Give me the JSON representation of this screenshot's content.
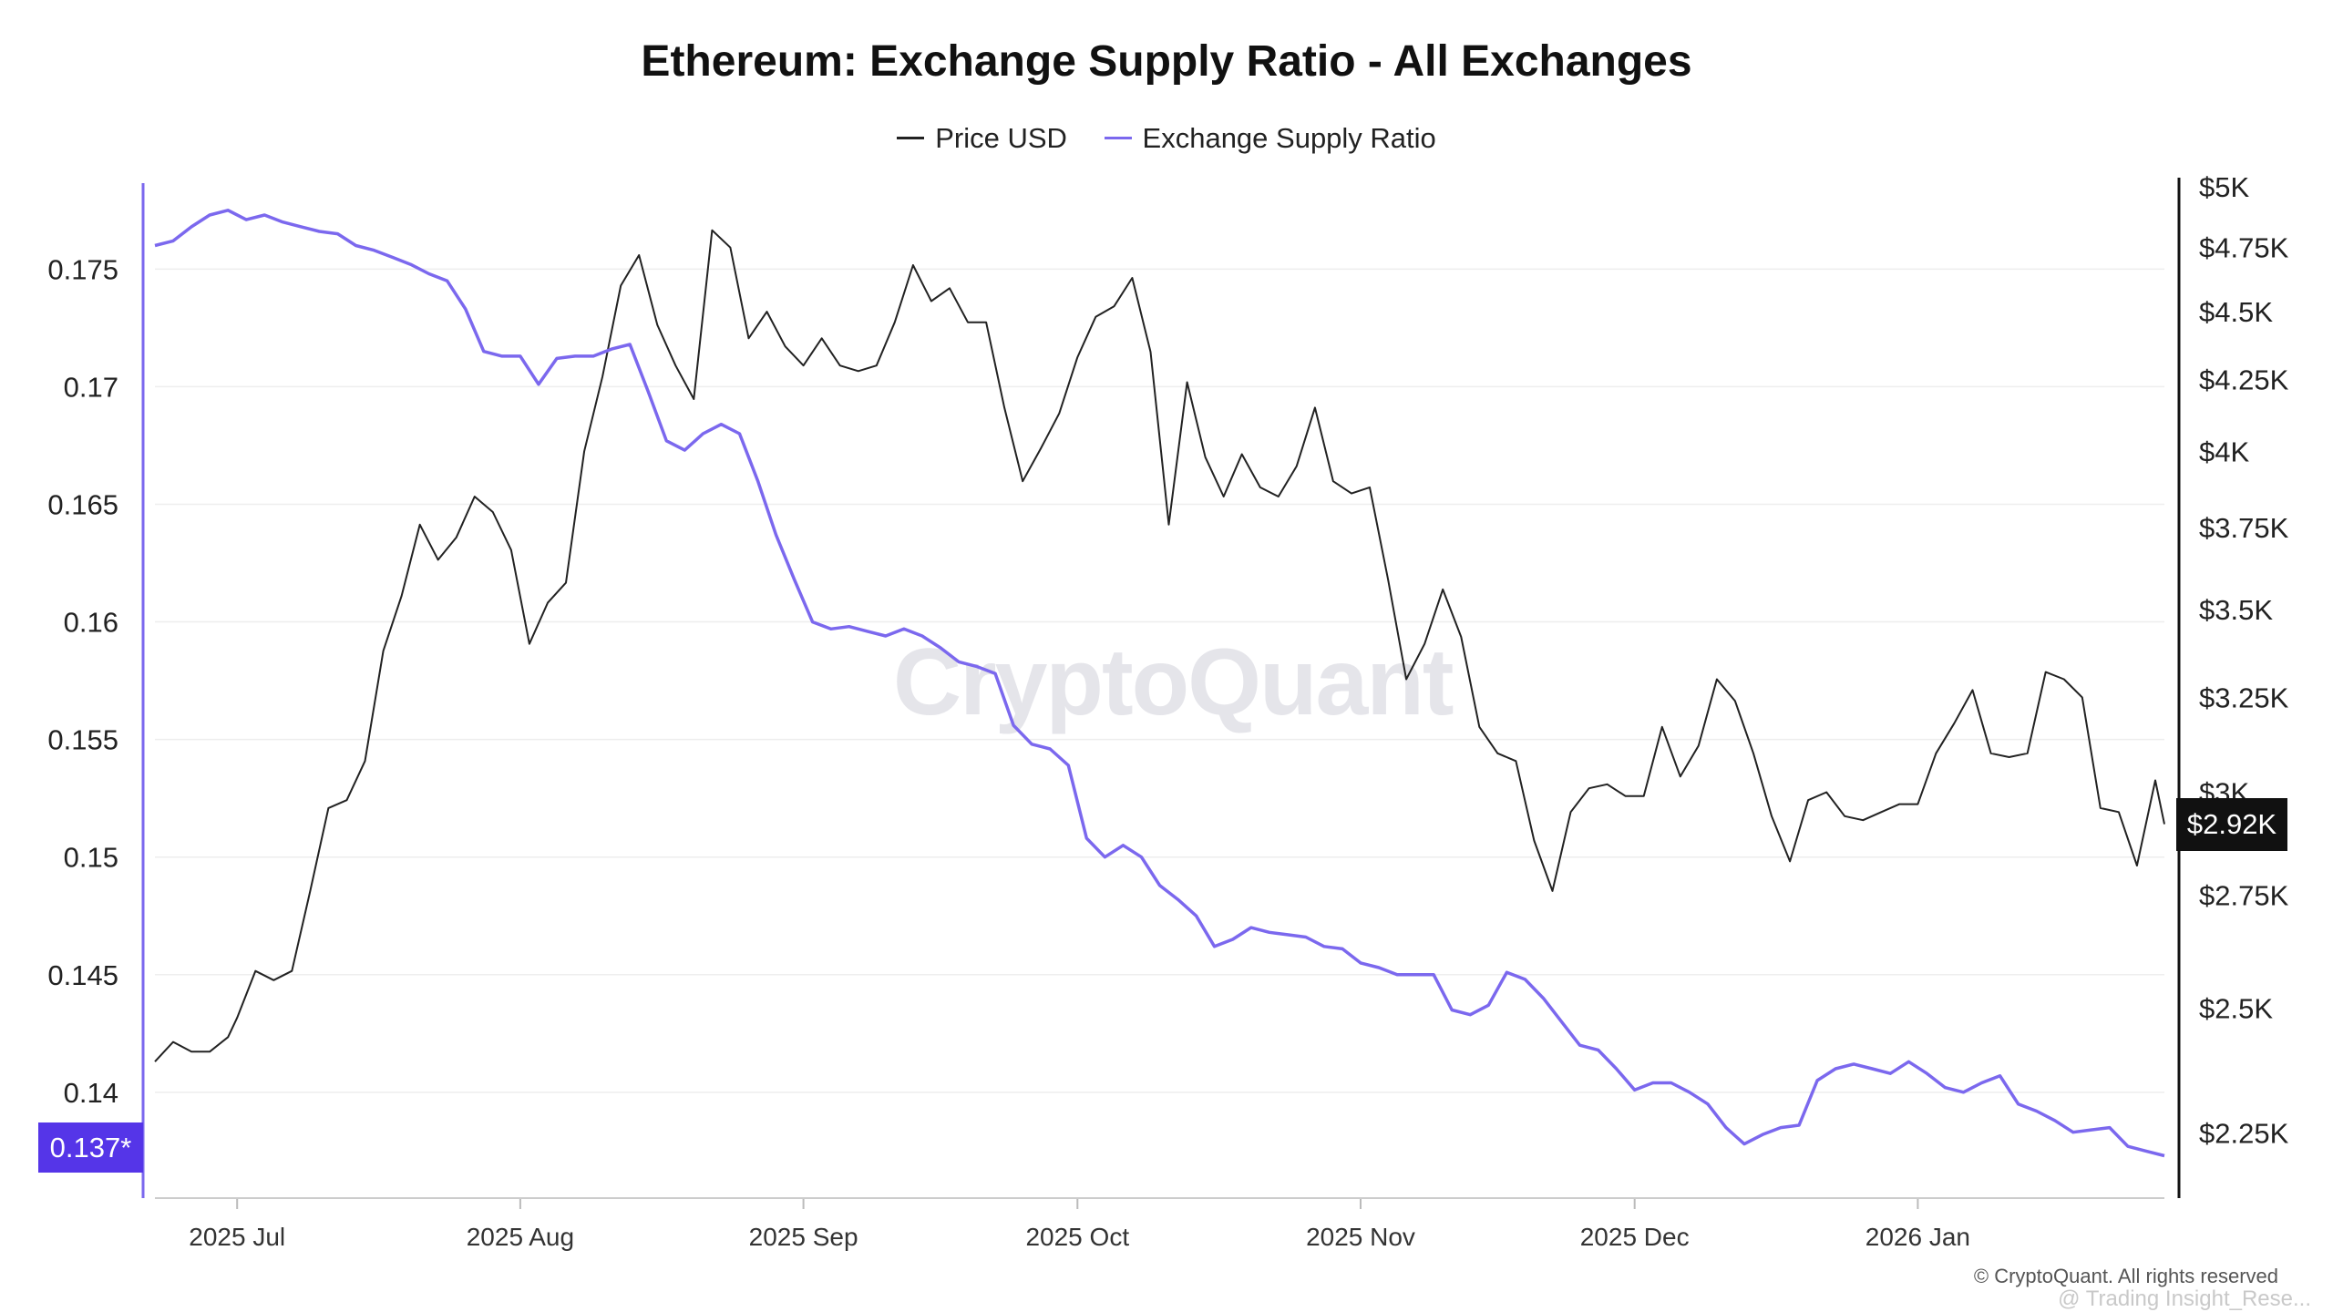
{
  "title": "Ethereum: Exchange Supply Ratio - All Exchanges",
  "legend": [
    {
      "label": "Price USD",
      "color": "#222222"
    },
    {
      "label": "Exchange Supply Ratio",
      "color": "#7b68ee"
    }
  ],
  "watermark": "CryptoQuant",
  "copyright": "© CryptoQuant. All rights reserved",
  "sub_watermark": "@ Trading Insight_Rese...",
  "current": {
    "ratio_label": "0.137*",
    "price_label": "$2.92K"
  },
  "chart_data": {
    "type": "line",
    "title": "Ethereum: Exchange Supply Ratio - All Exchanges",
    "x_ticks": [
      "2025 Jul",
      "2025 Aug",
      "2025 Sep",
      "2025 Oct",
      "2025 Nov",
      "2025 Dec",
      "2026 Jan"
    ],
    "x_range": [
      "2025-06-22",
      "2026-01-28"
    ],
    "y_left": {
      "ticks": [
        "0.14",
        "0.145",
        "0.15",
        "0.155",
        "0.16",
        "0.165",
        "0.17",
        "0.175"
      ],
      "range": [
        0.1355,
        0.1785
      ]
    },
    "y_right": {
      "ticks": [
        "$2.25K",
        "$2.5K",
        "$2.75K",
        "$3K",
        "$3.25K",
        "$3.5K",
        "$3.75K",
        "$4K",
        "$4.25K",
        "$4.5K",
        "$4.75K",
        "$5K"
      ],
      "range": [
        2130,
        5000
      ],
      "scale": "log"
    },
    "grid": true,
    "legend_position": "top-center",
    "series": [
      {
        "name": "Price USD",
        "axis": "right",
        "color": "#222222",
        "points": [
          [
            "2025-06-22",
            2390
          ],
          [
            "2025-06-24",
            2430
          ],
          [
            "2025-06-26",
            2410
          ],
          [
            "2025-06-28",
            2410
          ],
          [
            "2025-06-30",
            2440
          ],
          [
            "2025-07-01",
            2480
          ],
          [
            "2025-07-03",
            2580
          ],
          [
            "2025-07-05",
            2560
          ],
          [
            "2025-07-07",
            2580
          ],
          [
            "2025-07-09",
            2760
          ],
          [
            "2025-07-11",
            2960
          ],
          [
            "2025-07-13",
            2980
          ],
          [
            "2025-07-15",
            3080
          ],
          [
            "2025-07-17",
            3380
          ],
          [
            "2025-07-19",
            3540
          ],
          [
            "2025-07-21",
            3760
          ],
          [
            "2025-07-23",
            3650
          ],
          [
            "2025-07-25",
            3720
          ],
          [
            "2025-07-27",
            3850
          ],
          [
            "2025-07-29",
            3800
          ],
          [
            "2025-07-31",
            3680
          ],
          [
            "2025-08-02",
            3400
          ],
          [
            "2025-08-04",
            3520
          ],
          [
            "2025-08-06",
            3580
          ],
          [
            "2025-08-08",
            4000
          ],
          [
            "2025-08-10",
            4260
          ],
          [
            "2025-08-12",
            4600
          ],
          [
            "2025-08-14",
            4720
          ],
          [
            "2025-08-16",
            4450
          ],
          [
            "2025-08-18",
            4300
          ],
          [
            "2025-08-20",
            4180
          ],
          [
            "2025-08-22",
            4820
          ],
          [
            "2025-08-24",
            4750
          ],
          [
            "2025-08-26",
            4400
          ],
          [
            "2025-08-28",
            4500
          ],
          [
            "2025-08-30",
            4370
          ],
          [
            "2025-09-01",
            4300
          ],
          [
            "2025-09-03",
            4400
          ],
          [
            "2025-09-05",
            4300
          ],
          [
            "2025-09-07",
            4280
          ],
          [
            "2025-09-09",
            4300
          ],
          [
            "2025-09-11",
            4460
          ],
          [
            "2025-09-13",
            4680
          ],
          [
            "2025-09-15",
            4540
          ],
          [
            "2025-09-17",
            4590
          ],
          [
            "2025-09-19",
            4460
          ],
          [
            "2025-09-21",
            4460
          ],
          [
            "2025-09-23",
            4150
          ],
          [
            "2025-09-25",
            3900
          ],
          [
            "2025-09-27",
            4010
          ],
          [
            "2025-09-29",
            4130
          ],
          [
            "2025-10-01",
            4330
          ],
          [
            "2025-10-03",
            4480
          ],
          [
            "2025-10-05",
            4520
          ],
          [
            "2025-10-07",
            4630
          ],
          [
            "2025-10-09",
            4350
          ],
          [
            "2025-10-11",
            3760
          ],
          [
            "2025-10-13",
            4240
          ],
          [
            "2025-10-15",
            3980
          ],
          [
            "2025-10-17",
            3850
          ],
          [
            "2025-10-19",
            3990
          ],
          [
            "2025-10-21",
            3880
          ],
          [
            "2025-10-23",
            3850
          ],
          [
            "2025-10-25",
            3950
          ],
          [
            "2025-10-27",
            4150
          ],
          [
            "2025-10-29",
            3900
          ],
          [
            "2025-10-31",
            3860
          ],
          [
            "2025-11-02",
            3880
          ],
          [
            "2025-11-04",
            3590
          ],
          [
            "2025-11-06",
            3300
          ],
          [
            "2025-11-08",
            3400
          ],
          [
            "2025-11-10",
            3560
          ],
          [
            "2025-11-12",
            3420
          ],
          [
            "2025-11-14",
            3170
          ],
          [
            "2025-11-16",
            3100
          ],
          [
            "2025-11-18",
            3080
          ],
          [
            "2025-11-20",
            2880
          ],
          [
            "2025-11-22",
            2760
          ],
          [
            "2025-11-24",
            2950
          ],
          [
            "2025-11-26",
            3010
          ],
          [
            "2025-11-28",
            3020
          ],
          [
            "2025-11-30",
            2990
          ],
          [
            "2025-12-02",
            2990
          ],
          [
            "2025-12-04",
            3170
          ],
          [
            "2025-12-06",
            3040
          ],
          [
            "2025-12-08",
            3120
          ],
          [
            "2025-12-10",
            3300
          ],
          [
            "2025-12-12",
            3240
          ],
          [
            "2025-12-14",
            3100
          ],
          [
            "2025-12-16",
            2940
          ],
          [
            "2025-12-18",
            2830
          ],
          [
            "2025-12-20",
            2980
          ],
          [
            "2025-12-22",
            3000
          ],
          [
            "2025-12-24",
            2940
          ],
          [
            "2025-12-26",
            2930
          ],
          [
            "2025-12-28",
            2950
          ],
          [
            "2025-12-30",
            2970
          ],
          [
            "2026-01-01",
            2970
          ],
          [
            "2026-01-03",
            3100
          ],
          [
            "2026-01-05",
            3180
          ],
          [
            "2026-01-07",
            3270
          ],
          [
            "2026-01-09",
            3100
          ],
          [
            "2026-01-11",
            3090
          ],
          [
            "2026-01-13",
            3100
          ],
          [
            "2026-01-15",
            3320
          ],
          [
            "2026-01-17",
            3300
          ],
          [
            "2026-01-19",
            3250
          ],
          [
            "2026-01-21",
            2960
          ],
          [
            "2026-01-23",
            2950
          ],
          [
            "2026-01-25",
            2820
          ],
          [
            "2026-01-27",
            3030
          ],
          [
            "2026-01-28",
            2920
          ]
        ]
      },
      {
        "name": "Exchange Supply Ratio",
        "axis": "left",
        "color": "#7b68ee",
        "points": [
          [
            "2025-06-22",
            0.176
          ],
          [
            "2025-06-24",
            0.1762
          ],
          [
            "2025-06-26",
            0.1768
          ],
          [
            "2025-06-28",
            0.1773
          ],
          [
            "2025-06-30",
            0.1775
          ],
          [
            "2025-07-02",
            0.1771
          ],
          [
            "2025-07-04",
            0.1773
          ],
          [
            "2025-07-06",
            0.177
          ],
          [
            "2025-07-08",
            0.1768
          ],
          [
            "2025-07-10",
            0.1766
          ],
          [
            "2025-07-12",
            0.1765
          ],
          [
            "2025-07-14",
            0.176
          ],
          [
            "2025-07-16",
            0.1758
          ],
          [
            "2025-07-18",
            0.1755
          ],
          [
            "2025-07-20",
            0.1752
          ],
          [
            "2025-07-22",
            0.1748
          ],
          [
            "2025-07-24",
            0.1745
          ],
          [
            "2025-07-26",
            0.1733
          ],
          [
            "2025-07-28",
            0.1715
          ],
          [
            "2025-07-30",
            0.1713
          ],
          [
            "2025-08-01",
            0.1713
          ],
          [
            "2025-08-03",
            0.1701
          ],
          [
            "2025-08-05",
            0.1712
          ],
          [
            "2025-08-07",
            0.1713
          ],
          [
            "2025-08-09",
            0.1713
          ],
          [
            "2025-08-11",
            0.1716
          ],
          [
            "2025-08-13",
            0.1718
          ],
          [
            "2025-08-15",
            0.1698
          ],
          [
            "2025-08-17",
            0.1677
          ],
          [
            "2025-08-19",
            0.1673
          ],
          [
            "2025-08-21",
            0.168
          ],
          [
            "2025-08-23",
            0.1684
          ],
          [
            "2025-08-25",
            0.168
          ],
          [
            "2025-08-27",
            0.166
          ],
          [
            "2025-08-29",
            0.1637
          ],
          [
            "2025-08-31",
            0.1618
          ],
          [
            "2025-09-02",
            0.16
          ],
          [
            "2025-09-04",
            0.1597
          ],
          [
            "2025-09-06",
            0.1598
          ],
          [
            "2025-09-08",
            0.1596
          ],
          [
            "2025-09-10",
            0.1594
          ],
          [
            "2025-09-12",
            0.1597
          ],
          [
            "2025-09-14",
            0.1594
          ],
          [
            "2025-09-16",
            0.1589
          ],
          [
            "2025-09-18",
            0.1583
          ],
          [
            "2025-09-20",
            0.1581
          ],
          [
            "2025-09-22",
            0.1578
          ],
          [
            "2025-09-24",
            0.1556
          ],
          [
            "2025-09-26",
            0.1548
          ],
          [
            "2025-09-28",
            0.1546
          ],
          [
            "2025-09-30",
            0.1539
          ],
          [
            "2025-10-02",
            0.1508
          ],
          [
            "2025-10-04",
            0.15
          ],
          [
            "2025-10-06",
            0.1505
          ],
          [
            "2025-10-08",
            0.15
          ],
          [
            "2025-10-10",
            0.1488
          ],
          [
            "2025-10-12",
            0.1482
          ],
          [
            "2025-10-14",
            0.1475
          ],
          [
            "2025-10-16",
            0.1462
          ],
          [
            "2025-10-18",
            0.1465
          ],
          [
            "2025-10-20",
            0.147
          ],
          [
            "2025-10-22",
            0.1468
          ],
          [
            "2025-10-24",
            0.1467
          ],
          [
            "2025-10-26",
            0.1466
          ],
          [
            "2025-10-28",
            0.1462
          ],
          [
            "2025-10-30",
            0.1461
          ],
          [
            "2025-11-01",
            0.1455
          ],
          [
            "2025-11-03",
            0.1453
          ],
          [
            "2025-11-05",
            0.145
          ],
          [
            "2025-11-07",
            0.145
          ],
          [
            "2025-11-09",
            0.145
          ],
          [
            "2025-11-11",
            0.1435
          ],
          [
            "2025-11-13",
            0.1433
          ],
          [
            "2025-11-15",
            0.1437
          ],
          [
            "2025-11-17",
            0.1451
          ],
          [
            "2025-11-19",
            0.1448
          ],
          [
            "2025-11-21",
            0.144
          ],
          [
            "2025-11-23",
            0.143
          ],
          [
            "2025-11-25",
            0.142
          ],
          [
            "2025-11-27",
            0.1418
          ],
          [
            "2025-11-29",
            0.141
          ],
          [
            "2025-12-01",
            0.1401
          ],
          [
            "2025-12-03",
            0.1404
          ],
          [
            "2025-12-05",
            0.1404
          ],
          [
            "2025-12-07",
            0.14
          ],
          [
            "2025-12-09",
            0.1395
          ],
          [
            "2025-12-11",
            0.1385
          ],
          [
            "2025-12-13",
            0.1378
          ],
          [
            "2025-12-15",
            0.1382
          ],
          [
            "2025-12-17",
            0.1385
          ],
          [
            "2025-12-19",
            0.1386
          ],
          [
            "2025-12-21",
            0.1405
          ],
          [
            "2025-12-23",
            0.141
          ],
          [
            "2025-12-25",
            0.1412
          ],
          [
            "2025-12-27",
            0.141
          ],
          [
            "2025-12-29",
            0.1408
          ],
          [
            "2025-12-31",
            0.1413
          ],
          [
            "2026-01-02",
            0.1408
          ],
          [
            "2026-01-04",
            0.1402
          ],
          [
            "2026-01-06",
            0.14
          ],
          [
            "2026-01-08",
            0.1404
          ],
          [
            "2026-01-10",
            0.1407
          ],
          [
            "2026-01-12",
            0.1395
          ],
          [
            "2026-01-14",
            0.1392
          ],
          [
            "2026-01-16",
            0.1388
          ],
          [
            "2026-01-18",
            0.1383
          ],
          [
            "2026-01-20",
            0.1384
          ],
          [
            "2026-01-22",
            0.1385
          ],
          [
            "2026-01-24",
            0.1377
          ],
          [
            "2026-01-26",
            0.1375
          ],
          [
            "2026-01-28",
            0.1373
          ]
        ]
      }
    ]
  }
}
